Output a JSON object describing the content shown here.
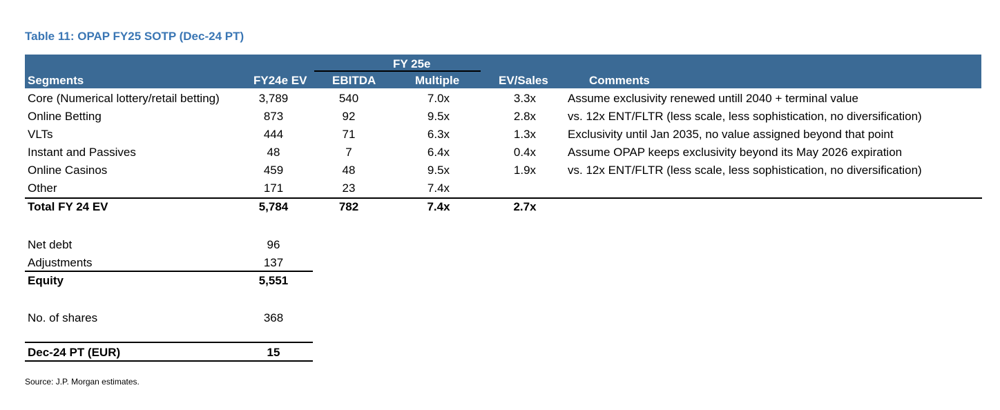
{
  "title": "Table 11: OPAP FY25 SOTP (Dec-24 PT)",
  "header": {
    "group_label": "FY 25e",
    "columns": {
      "segments": "Segments",
      "ev": "FY24e EV",
      "ebitda": "EBITDA",
      "multiple": "Multiple",
      "ev_sales": "EV/Sales",
      "comments": "Comments"
    }
  },
  "rows": [
    {
      "segment": "Core (Numerical lottery/retail betting)",
      "ev": "3,789",
      "ebitda": "540",
      "multiple": "7.0x",
      "ev_sales": "3.3x",
      "comment": "Assume exclusivity renewed untill 2040 + terminal value"
    },
    {
      "segment": "Online Betting",
      "ev": "873",
      "ebitda": "92",
      "multiple": "9.5x",
      "ev_sales": "2.8x",
      "comment": "vs. 12x ENT/FLTR (less scale, less sophistication, no diversification)"
    },
    {
      "segment": "VLTs",
      "ev": "444",
      "ebitda": "71",
      "multiple": "6.3x",
      "ev_sales": "1.3x",
      "comment": "Exclusivity until Jan 2035, no value assigned beyond that point"
    },
    {
      "segment": "Instant and Passives",
      "ev": "48",
      "ebitda": "7",
      "multiple": "6.4x",
      "ev_sales": "0.4x",
      "comment": "Assume OPAP keeps exclusivity beyond its May 2026 expiration"
    },
    {
      "segment": "Online Casinos",
      "ev": "459",
      "ebitda": "48",
      "multiple": "9.5x",
      "ev_sales": "1.9x",
      "comment": "vs. 12x ENT/FLTR (less scale, less sophistication, no diversification)"
    },
    {
      "segment": "Other",
      "ev": "171",
      "ebitda": "23",
      "multiple": "7.4x",
      "ev_sales": "",
      "comment": ""
    }
  ],
  "total": {
    "segment": "Total FY 24 EV",
    "ev": "5,784",
    "ebitda": "782",
    "multiple": "7.4x",
    "ev_sales": "2.7x"
  },
  "bridge": {
    "net_debt_label": "Net debt",
    "net_debt": "96",
    "adjustments_label": "Adjustments",
    "adjustments": "137",
    "equity_label": "Equity",
    "equity": "5,551",
    "shares_label": "No. of shares",
    "shares": "368",
    "pt_label": "Dec-24 PT (EUR)",
    "pt": "15"
  },
  "source": "Source: J.P. Morgan estimates."
}
